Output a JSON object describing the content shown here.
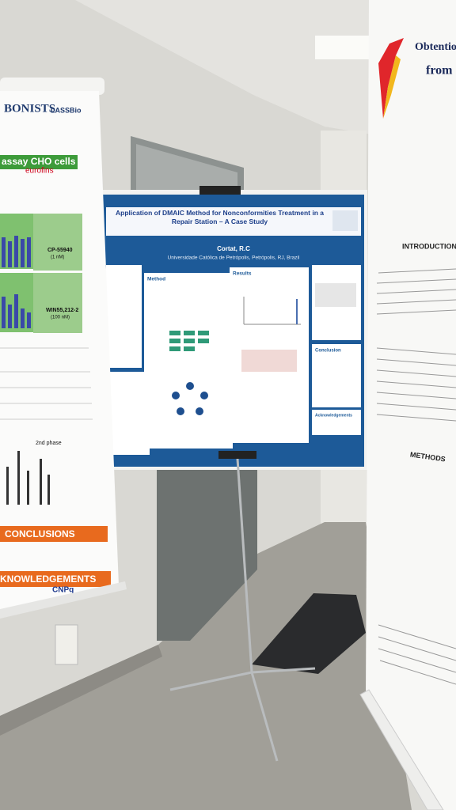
{
  "center_poster": {
    "title": "Application of DMAIC Method for Nonconformities Treatment in a Repair Station – A Case Study",
    "author": "Cortat, R.C",
    "affiliation": "Universidade Católica de Petrópolis, Petrópolis, RJ, Brazil",
    "sections": [
      "Method",
      "Results",
      "Conclusion",
      "Acknowledgements"
    ]
  },
  "left_poster": {
    "heading": "BONISTS",
    "logo": "LASSBio",
    "subtitle": "assay CHO cells",
    "sponsor": "eurofins",
    "compounds": [
      "CP-55940",
      "(1 nM)",
      "WIN55,212-2",
      "(100 nM)"
    ],
    "chart_label": "2nd phase",
    "sections": [
      "CONCLUSIONS",
      "KNOWLEDGEMENTS"
    ],
    "funder": "CNPq"
  },
  "right_poster": {
    "title_lines": [
      "Obtention o",
      "from a"
    ],
    "sections": [
      "INTRODUCTION",
      "METHODS"
    ]
  }
}
